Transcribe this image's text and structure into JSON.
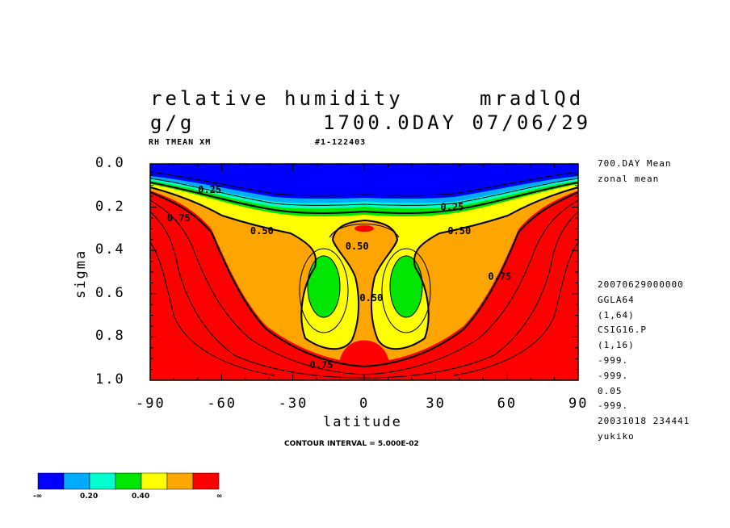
{
  "header": {
    "title": "relative humidity",
    "run_id": "mradlQd",
    "units": "g/g",
    "time": "1700.0DAY 07/06/29",
    "varname": "RH TMEAN XM",
    "frame": "#1-122403"
  },
  "side_info": [
    "700.DAY Mean",
    "zonal mean"
  ],
  "meta_info": [
    "20070629000000",
    "GGLA64",
    "(1,64)",
    "CSIG16.P",
    "(1,16)",
    "-999.",
    "-999.",
    "0.05",
    "-999.",
    "20031018 234441",
    "yukiko"
  ],
  "footer": {
    "contour_interval": "CONTOUR INTERVAL = 5.000E-02"
  },
  "colorbar": {
    "colors": [
      "#0000ff",
      "#00aaff",
      "#00ffcc",
      "#00e600",
      "#ffff00",
      "#ffa500",
      "#ff0000"
    ],
    "labels": [
      "-∞",
      "0.20",
      "0.40",
      "∞"
    ]
  },
  "chart_data": {
    "type": "contour",
    "title": "relative humidity",
    "xlabel": "latitude",
    "ylabel": "sigma",
    "xlim": [
      -90,
      90
    ],
    "ylim": [
      1.0,
      0.0
    ],
    "xticks": [
      "-90",
      "-60",
      "-30",
      "0",
      "30",
      "60",
      "90"
    ],
    "yticks": [
      "0.0",
      "0.2",
      "0.4",
      "0.6",
      "0.8",
      "1.0"
    ],
    "contour_labels": [
      {
        "text": "0.25",
        "lat": -65,
        "sigma": 0.12
      },
      {
        "text": "0.25",
        "lat": 37,
        "sigma": 0.2
      },
      {
        "text": "0.75",
        "lat": -78,
        "sigma": 0.25
      },
      {
        "text": "0.50",
        "lat": -43,
        "sigma": 0.31
      },
      {
        "text": "0.50",
        "lat": 40,
        "sigma": 0.31
      },
      {
        "text": "0.50",
        "lat": -3,
        "sigma": 0.38
      },
      {
        "text": "0.75",
        "lat": 57,
        "sigma": 0.52
      },
      {
        "text": "0.50",
        "lat": 3,
        "sigma": 0.62
      },
      {
        "text": "0.75",
        "lat": -18,
        "sigma": 0.93
      }
    ],
    "levels": [
      0.1,
      0.2,
      0.3,
      0.4,
      0.5,
      0.6,
      0.7
    ]
  }
}
